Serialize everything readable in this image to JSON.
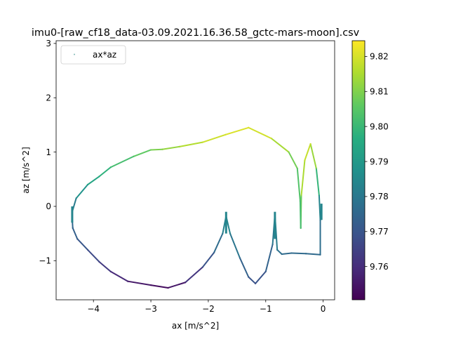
{
  "chart_data": {
    "type": "scatter",
    "title": "imu0-[raw_cf18_data-03.09.2021.16.36.58_gctc-mars-moon].csv",
    "xlabel": "ax [m/s^2]",
    "ylabel": "az [m/s^2]",
    "xlim": [
      -4.65,
      0.2
    ],
    "ylim": [
      -1.72,
      3.05
    ],
    "xticks": [
      -4,
      -3,
      -2,
      -1,
      0
    ],
    "yticks": [
      -1,
      0,
      1,
      2,
      3
    ],
    "tick_labels": {
      "x": [
        "−4",
        "−3",
        "−2",
        "−1",
        "0"
      ],
      "y": [
        "−1",
        "0",
        "1",
        "2",
        "3"
      ]
    },
    "grid": false,
    "legend": {
      "position": "top-left",
      "entries": [
        "ax*az"
      ]
    },
    "colorbar": {
      "colormap": "viridis",
      "range": [
        9.7505,
        9.8245
      ],
      "ticks": [
        9.76,
        9.77,
        9.78,
        9.79,
        9.8,
        9.81,
        9.82
      ],
      "tick_labels": [
        "9.76",
        "9.77",
        "9.78",
        "9.79",
        "9.80",
        "9.81",
        "9.82"
      ]
    },
    "series": [
      {
        "name": "ax*az",
        "description_color": "color encodes value on colorbar",
        "points": [
          {
            "x": -4.37,
            "y": -0.23,
            "c": 9.776
          },
          {
            "x": -4.36,
            "y": -0.4,
            "c": 9.774
          },
          {
            "x": -4.28,
            "y": -0.6,
            "c": 9.772
          },
          {
            "x": -4.1,
            "y": -0.8,
            "c": 9.769
          },
          {
            "x": -3.9,
            "y": -1.02,
            "c": 9.765
          },
          {
            "x": -3.7,
            "y": -1.2,
            "c": 9.761
          },
          {
            "x": -3.4,
            "y": -1.38,
            "c": 9.757
          },
          {
            "x": -3.0,
            "y": -1.45,
            "c": 9.754
          },
          {
            "x": -2.7,
            "y": -1.5,
            "c": 9.752
          },
          {
            "x": -2.4,
            "y": -1.4,
            "c": 9.758
          },
          {
            "x": -2.1,
            "y": -1.12,
            "c": 9.766
          },
          {
            "x": -1.9,
            "y": -0.85,
            "c": 9.773
          },
          {
            "x": -1.75,
            "y": -0.5,
            "c": 9.78
          },
          {
            "x": -1.69,
            "y": -0.18,
            "c": 9.786
          },
          {
            "x": -1.62,
            "y": -0.5,
            "c": 9.782
          },
          {
            "x": -1.45,
            "y": -0.95,
            "c": 9.776
          },
          {
            "x": -1.3,
            "y": -1.3,
            "c": 9.771
          },
          {
            "x": -1.18,
            "y": -1.42,
            "c": 9.768
          },
          {
            "x": -1.0,
            "y": -1.2,
            "c": 9.771
          },
          {
            "x": -0.88,
            "y": -0.7,
            "c": 9.777
          },
          {
            "x": -0.84,
            "y": -0.15,
            "c": 9.783
          },
          {
            "x": -0.8,
            "y": -0.8,
            "c": 9.779
          },
          {
            "x": -0.72,
            "y": -0.88,
            "c": 9.776
          },
          {
            "x": -0.55,
            "y": -0.86,
            "c": 9.776
          },
          {
            "x": -0.3,
            "y": -0.87,
            "c": 9.776
          },
          {
            "x": -0.05,
            "y": -0.89,
            "c": 9.776
          },
          {
            "x": -0.05,
            "y": -0.25,
            "c": 9.778
          },
          {
            "x": -0.07,
            "y": 0.2,
            "c": 9.79
          },
          {
            "x": -0.12,
            "y": 0.7,
            "c": 9.808
          },
          {
            "x": -0.22,
            "y": 1.15,
            "c": 9.818
          },
          {
            "x": -0.32,
            "y": 0.85,
            "c": 9.818
          },
          {
            "x": -0.38,
            "y": 0.2,
            "c": 9.812
          },
          {
            "x": -0.39,
            "y": -0.4,
            "c": 9.802
          },
          {
            "x": -0.4,
            "y": 0.1,
            "c": 9.802
          },
          {
            "x": -0.45,
            "y": 0.7,
            "c": 9.806
          },
          {
            "x": -0.6,
            "y": 1.0,
            "c": 9.811
          },
          {
            "x": -0.9,
            "y": 1.25,
            "c": 9.818
          },
          {
            "x": -1.3,
            "y": 1.45,
            "c": 9.821
          },
          {
            "x": -1.7,
            "y": 1.32,
            "c": 9.82
          },
          {
            "x": -2.1,
            "y": 1.18,
            "c": 9.818
          },
          {
            "x": -2.5,
            "y": 1.1,
            "c": 9.814
          },
          {
            "x": -2.8,
            "y": 1.05,
            "c": 9.811
          },
          {
            "x": -3.0,
            "y": 1.04,
            "c": 9.808
          },
          {
            "x": -3.3,
            "y": 0.92,
            "c": 9.804
          },
          {
            "x": -3.7,
            "y": 0.72,
            "c": 9.8
          },
          {
            "x": -3.9,
            "y": 0.55,
            "c": 9.796
          },
          {
            "x": -4.1,
            "y": 0.4,
            "c": 9.792
          },
          {
            "x": -4.3,
            "y": 0.15,
            "c": 9.784
          },
          {
            "x": -4.37,
            "y": -0.1,
            "c": 9.778
          }
        ]
      }
    ]
  }
}
